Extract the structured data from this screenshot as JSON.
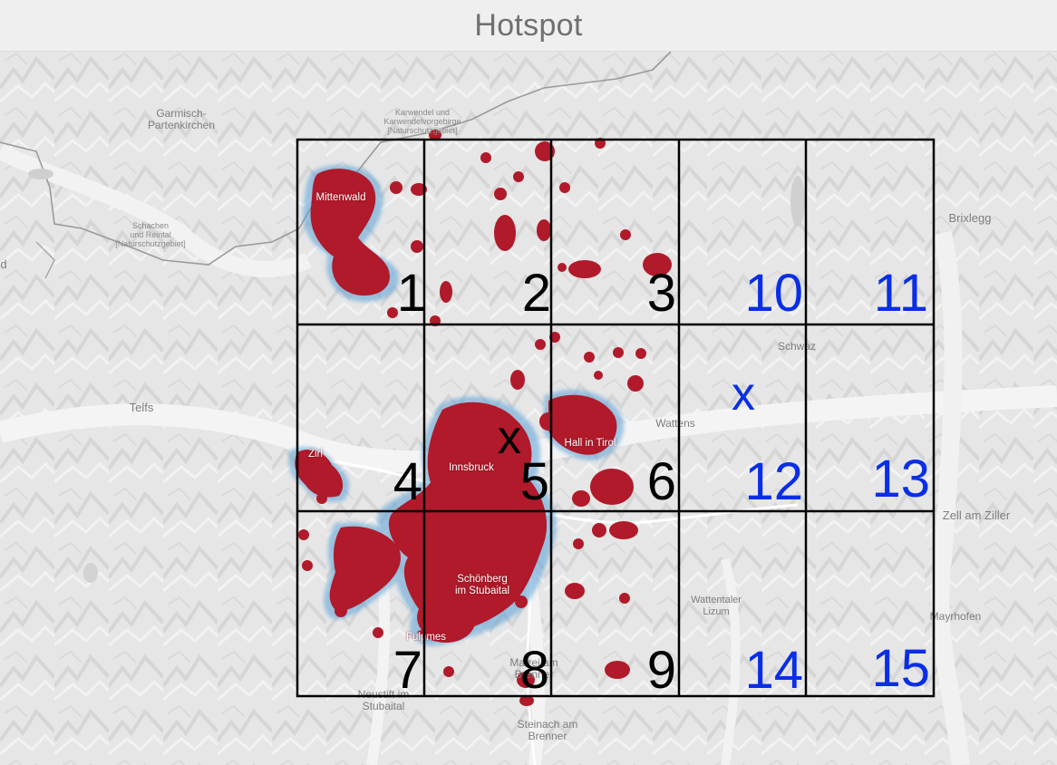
{
  "title": "Hotspot",
  "places": {
    "garmisch": "Garmisch-\nPartenkirchen",
    "karwendel": "Karwendel und\nKarwendelvorgebirge\n[Naturschutzgebiet]",
    "schachen": "Schachen\nund Reintal\n[Naturschutzgebiet]",
    "mittenwald": "Mittenwald",
    "brixlegg": "Brixlegg",
    "schwaz": "Schwaz",
    "telfs": "Telfs",
    "wattens": "Wattens",
    "zirl": "Zirl",
    "innsbruck": "Innsbruck",
    "hall": "Hall in Tirol",
    "zell": "Zell am Ziller",
    "schoenberg": "Schönberg\nim Stubaital",
    "wattentaler": "Wattentaler\nLizum",
    "mayrhofen": "Mayrhofen",
    "fulpmes": "Fulpmes",
    "matrei": "Matrei am\nBrenner",
    "neustift": "Neustift im\nStubaital",
    "steinach": "Steinach am\nBrenner",
    "edge_d": "d"
  },
  "grid": {
    "cells": [
      "1",
      "2",
      "3",
      "10",
      "11",
      "4",
      "5",
      "6",
      "12",
      "13",
      "7",
      "8",
      "9",
      "14",
      "15"
    ],
    "markers": [
      "x",
      "x"
    ]
  },
  "colors": {
    "hotspot_core": "#b01a2a",
    "hotspot_halo": "#5aa0d6",
    "black_label": "#000000",
    "blue_label": "#0a2ee6",
    "grid_line": "#000000"
  }
}
